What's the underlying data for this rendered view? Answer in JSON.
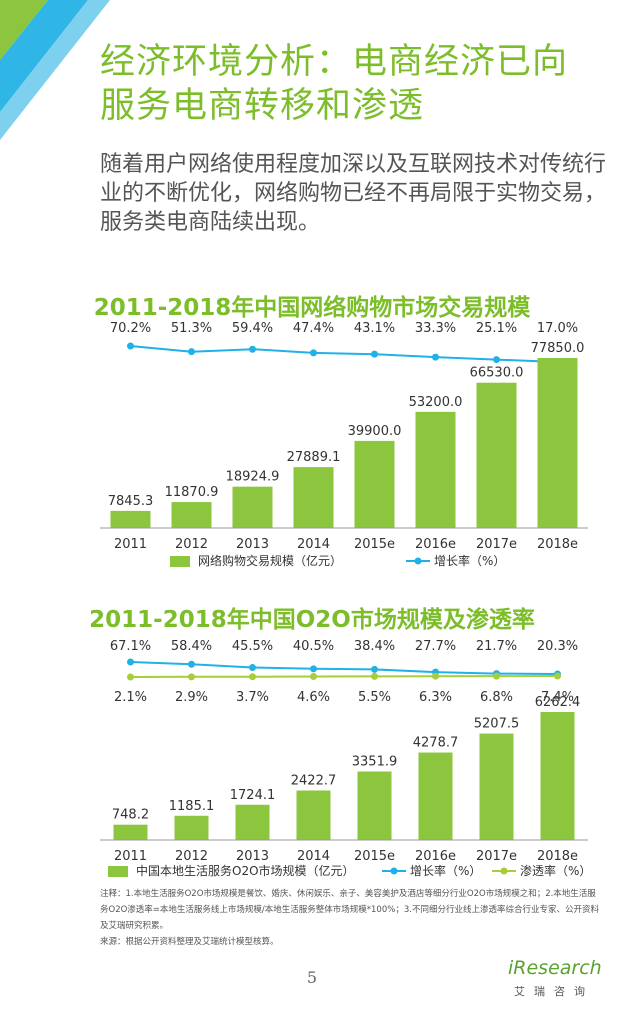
{
  "page": {
    "title": "经济环境分析：电商经济已向服务电商转移和渗透",
    "intro": "随着用户网络使用程度加深以及互联网技术对传统行业的不断优化，网络购物已经不再局限于实物交易，服务类电商陆续出现。",
    "page_number": "5",
    "brand_colors": {
      "accent": "#7cbd2a",
      "line": "#1fb1e8"
    }
  },
  "notes": {
    "note": "注释：1.本地生活服务O2O市场规模是餐饮、婚庆、休闲娱乐、亲子、美容美护及酒店等细分行业O2O市场规模之和；2.本地生活服务O2O渗透率=本地生活服务线上市场规模/本地生活服务整体市场规模*100%；3.不同细分行业线上渗透率综合行业专家、公开资料及艾瑞研究积累。",
    "source": "来源：根据公开资料整理及艾瑞统计模型核算。"
  },
  "logo": {
    "name": "iResearch",
    "sub": "艾瑞咨询"
  },
  "chart_data": [
    {
      "type": "bar",
      "title": "2011-2018年中国网络购物市场交易规模",
      "categories": [
        "2011",
        "2012",
        "2013",
        "2014",
        "2015e",
        "2016e",
        "2017e",
        "2018e"
      ],
      "series": [
        {
          "name": "网络购物交易规模（亿元）",
          "kind": "bar",
          "color": "#8cc63e",
          "values": [
            7845.3,
            11870.9,
            18924.9,
            27889.1,
            39900.0,
            53200.0,
            66530.0,
            77850.0
          ],
          "labels": [
            "7845.3",
            "11870.9",
            "18924.9",
            "27889.1",
            "39900.0",
            "53200.0",
            "66530.0",
            "77850.0"
          ]
        },
        {
          "name": "增长率（%）",
          "kind": "line",
          "color": "#1fb1e8",
          "values": [
            70.2,
            51.3,
            59.4,
            47.4,
            43.1,
            33.3,
            25.1,
            17.0
          ],
          "labels": [
            "70.2%",
            "51.3%",
            "59.4%",
            "47.4%",
            "43.1%",
            "33.3%",
            "25.1%",
            "17.0%"
          ]
        }
      ]
    },
    {
      "type": "bar",
      "title": "2011-2018年中国O2O市场规模及渗透率",
      "categories": [
        "2011",
        "2012",
        "2013",
        "2014",
        "2015e",
        "2016e",
        "2017e",
        "2018e"
      ],
      "series": [
        {
          "name": "中国本地生活服务O2O市场规模（亿元）",
          "kind": "bar",
          "color": "#8cc63e",
          "values": [
            748.2,
            1185.1,
            1724.1,
            2422.7,
            3351.9,
            4278.7,
            5207.5,
            6262.4
          ],
          "labels": [
            "748.2",
            "1185.1",
            "1724.1",
            "2422.7",
            "3351.9",
            "4278.7",
            "5207.5",
            "6262.4"
          ]
        },
        {
          "name": "增长率（%）",
          "kind": "line",
          "color": "#1fb1e8",
          "values": [
            67.1,
            58.4,
            45.5,
            40.5,
            38.4,
            27.7,
            21.7,
            20.3
          ],
          "labels": [
            "67.1%",
            "58.4%",
            "45.5%",
            "40.5%",
            "38.4%",
            "27.7%",
            "21.7%",
            "20.3%"
          ]
        },
        {
          "name": "渗透率（%）",
          "kind": "line",
          "color": "#a6cd3a",
          "values": [
            2.1,
            2.9,
            3.7,
            4.6,
            5.5,
            6.3,
            6.8,
            7.4
          ],
          "labels": [
            "2.1%",
            "2.9%",
            "3.7%",
            "4.6%",
            "5.5%",
            "6.3%",
            "6.8%",
            "7.4%"
          ]
        }
      ]
    }
  ]
}
